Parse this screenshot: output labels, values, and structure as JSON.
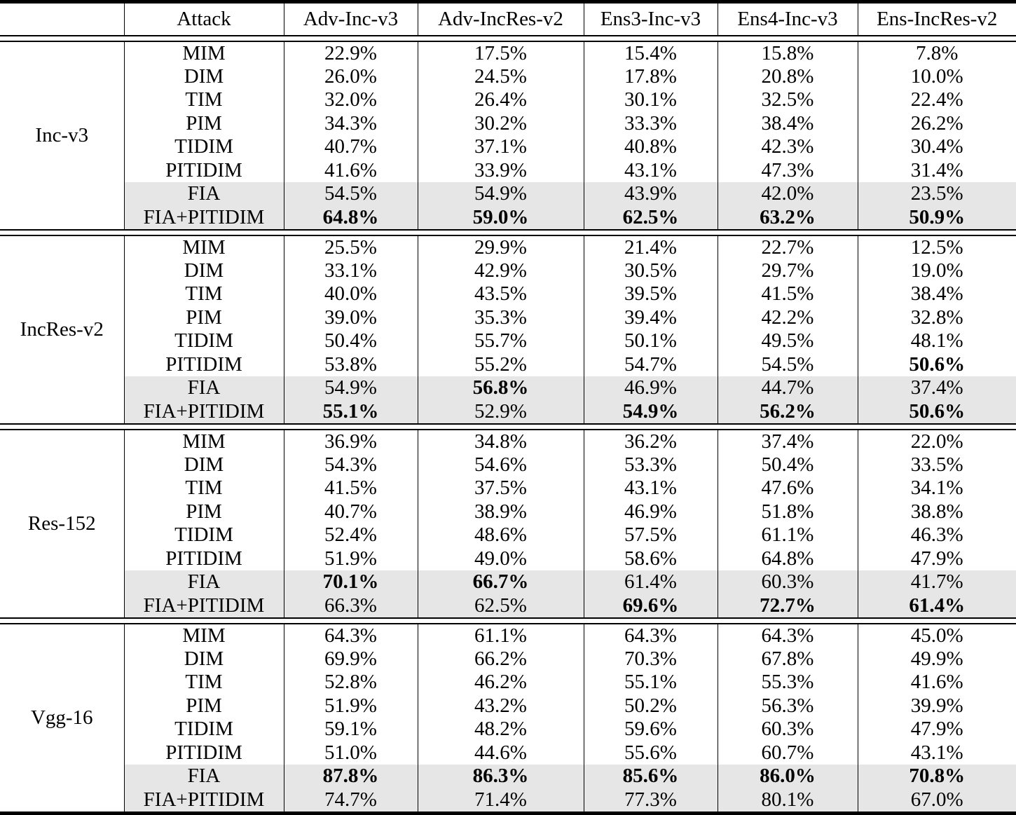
{
  "table": {
    "columns": [
      "",
      "Attack",
      "Adv-Inc-v3",
      "Adv-IncRes-v2",
      "Ens3-Inc-v3",
      "Ens4-Inc-v3",
      "Ens-IncRes-v2"
    ],
    "groups": [
      {
        "model": "Inc-v3",
        "rows": [
          {
            "attack": "MIM",
            "values": [
              "22.9%",
              "17.5%",
              "15.4%",
              "15.8%",
              "7.8%"
            ],
            "bold": [
              0,
              0,
              0,
              0,
              0
            ],
            "shaded": false
          },
          {
            "attack": "DIM",
            "values": [
              "26.0%",
              "24.5%",
              "17.8%",
              "20.8%",
              "10.0%"
            ],
            "bold": [
              0,
              0,
              0,
              0,
              0
            ],
            "shaded": false
          },
          {
            "attack": "TIM",
            "values": [
              "32.0%",
              "26.4%",
              "30.1%",
              "32.5%",
              "22.4%"
            ],
            "bold": [
              0,
              0,
              0,
              0,
              0
            ],
            "shaded": false
          },
          {
            "attack": "PIM",
            "values": [
              "34.3%",
              "30.2%",
              "33.3%",
              "38.4%",
              "26.2%"
            ],
            "bold": [
              0,
              0,
              0,
              0,
              0
            ],
            "shaded": false
          },
          {
            "attack": "TIDIM",
            "values": [
              "40.7%",
              "37.1%",
              "40.8%",
              "42.3%",
              "30.4%"
            ],
            "bold": [
              0,
              0,
              0,
              0,
              0
            ],
            "shaded": false
          },
          {
            "attack": "PITIDIM",
            "values": [
              "41.6%",
              "33.9%",
              "43.1%",
              "47.3%",
              "31.4%"
            ],
            "bold": [
              0,
              0,
              0,
              0,
              0
            ],
            "shaded": false
          },
          {
            "attack": "FIA",
            "values": [
              "54.5%",
              "54.9%",
              "43.9%",
              "42.0%",
              "23.5%"
            ],
            "bold": [
              0,
              0,
              0,
              0,
              0
            ],
            "shaded": true
          },
          {
            "attack": "FIA+PITIDIM",
            "values": [
              "64.8%",
              "59.0%",
              "62.5%",
              "63.2%",
              "50.9%"
            ],
            "bold": [
              1,
              1,
              1,
              1,
              1
            ],
            "shaded": true
          }
        ]
      },
      {
        "model": "IncRes-v2",
        "rows": [
          {
            "attack": "MIM",
            "values": [
              "25.5%",
              "29.9%",
              "21.4%",
              "22.7%",
              "12.5%"
            ],
            "bold": [
              0,
              0,
              0,
              0,
              0
            ],
            "shaded": false
          },
          {
            "attack": "DIM",
            "values": [
              "33.1%",
              "42.9%",
              "30.5%",
              "29.7%",
              "19.0%"
            ],
            "bold": [
              0,
              0,
              0,
              0,
              0
            ],
            "shaded": false
          },
          {
            "attack": "TIM",
            "values": [
              "40.0%",
              "43.5%",
              "39.5%",
              "41.5%",
              "38.4%"
            ],
            "bold": [
              0,
              0,
              0,
              0,
              0
            ],
            "shaded": false
          },
          {
            "attack": "PIM",
            "values": [
              "39.0%",
              "35.3%",
              "39.4%",
              "42.2%",
              "32.8%"
            ],
            "bold": [
              0,
              0,
              0,
              0,
              0
            ],
            "shaded": false
          },
          {
            "attack": "TIDIM",
            "values": [
              "50.4%",
              "55.7%",
              "50.1%",
              "49.5%",
              "48.1%"
            ],
            "bold": [
              0,
              0,
              0,
              0,
              0
            ],
            "shaded": false
          },
          {
            "attack": "PITIDIM",
            "values": [
              "53.8%",
              "55.2%",
              "54.7%",
              "54.5%",
              "50.6%"
            ],
            "bold": [
              0,
              0,
              0,
              0,
              1
            ],
            "shaded": false
          },
          {
            "attack": "FIA",
            "values": [
              "54.9%",
              "56.8%",
              "46.9%",
              "44.7%",
              "37.4%"
            ],
            "bold": [
              0,
              1,
              0,
              0,
              0
            ],
            "shaded": true
          },
          {
            "attack": "FIA+PITIDIM",
            "values": [
              "55.1%",
              "52.9%",
              "54.9%",
              "56.2%",
              "50.6%"
            ],
            "bold": [
              1,
              0,
              1,
              1,
              1
            ],
            "shaded": true
          }
        ]
      },
      {
        "model": "Res-152",
        "rows": [
          {
            "attack": "MIM",
            "values": [
              "36.9%",
              "34.8%",
              "36.2%",
              "37.4%",
              "22.0%"
            ],
            "bold": [
              0,
              0,
              0,
              0,
              0
            ],
            "shaded": false
          },
          {
            "attack": "DIM",
            "values": [
              "54.3%",
              "54.6%",
              "53.3%",
              "50.4%",
              "33.5%"
            ],
            "bold": [
              0,
              0,
              0,
              0,
              0
            ],
            "shaded": false
          },
          {
            "attack": "TIM",
            "values": [
              "41.5%",
              "37.5%",
              "43.1%",
              "47.6%",
              "34.1%"
            ],
            "bold": [
              0,
              0,
              0,
              0,
              0
            ],
            "shaded": false
          },
          {
            "attack": "PIM",
            "values": [
              "40.7%",
              "38.9%",
              "46.9%",
              "51.8%",
              "38.8%"
            ],
            "bold": [
              0,
              0,
              0,
              0,
              0
            ],
            "shaded": false
          },
          {
            "attack": "TIDIM",
            "values": [
              "52.4%",
              "48.6%",
              "57.5%",
              "61.1%",
              "46.3%"
            ],
            "bold": [
              0,
              0,
              0,
              0,
              0
            ],
            "shaded": false
          },
          {
            "attack": "PITIDIM",
            "values": [
              "51.9%",
              "49.0%",
              "58.6%",
              "64.8%",
              "47.9%"
            ],
            "bold": [
              0,
              0,
              0,
              0,
              0
            ],
            "shaded": false
          },
          {
            "attack": "FIA",
            "values": [
              "70.1%",
              "66.7%",
              "61.4%",
              "60.3%",
              "41.7%"
            ],
            "bold": [
              1,
              1,
              0,
              0,
              0
            ],
            "shaded": true
          },
          {
            "attack": "FIA+PITIDIM",
            "values": [
              "66.3%",
              "62.5%",
              "69.6%",
              "72.7%",
              "61.4%"
            ],
            "bold": [
              0,
              0,
              1,
              1,
              1
            ],
            "shaded": true
          }
        ]
      },
      {
        "model": "Vgg-16",
        "rows": [
          {
            "attack": "MIM",
            "values": [
              "64.3%",
              "61.1%",
              "64.3%",
              "64.3%",
              "45.0%"
            ],
            "bold": [
              0,
              0,
              0,
              0,
              0
            ],
            "shaded": false
          },
          {
            "attack": "DIM",
            "values": [
              "69.9%",
              "66.2%",
              "70.3%",
              "67.8%",
              "49.9%"
            ],
            "bold": [
              0,
              0,
              0,
              0,
              0
            ],
            "shaded": false
          },
          {
            "attack": "TIM",
            "values": [
              "52.8%",
              "46.2%",
              "55.1%",
              "55.3%",
              "41.6%"
            ],
            "bold": [
              0,
              0,
              0,
              0,
              0
            ],
            "shaded": false
          },
          {
            "attack": "PIM",
            "values": [
              "51.9%",
              "43.2%",
              "50.2%",
              "56.3%",
              "39.9%"
            ],
            "bold": [
              0,
              0,
              0,
              0,
              0
            ],
            "shaded": false
          },
          {
            "attack": "TIDIM",
            "values": [
              "59.1%",
              "48.2%",
              "59.6%",
              "60.3%",
              "47.9%"
            ],
            "bold": [
              0,
              0,
              0,
              0,
              0
            ],
            "shaded": false
          },
          {
            "attack": "PITIDIM",
            "values": [
              "51.0%",
              "44.6%",
              "55.6%",
              "60.7%",
              "43.1%"
            ],
            "bold": [
              0,
              0,
              0,
              0,
              0
            ],
            "shaded": false
          },
          {
            "attack": "FIA",
            "values": [
              "87.8%",
              "86.3%",
              "85.6%",
              "86.0%",
              "70.8%"
            ],
            "bold": [
              1,
              1,
              1,
              1,
              1
            ],
            "shaded": true
          },
          {
            "attack": "FIA+PITIDIM",
            "values": [
              "74.7%",
              "71.4%",
              "77.3%",
              "80.1%",
              "67.0%"
            ],
            "bold": [
              0,
              0,
              0,
              0,
              0
            ],
            "shaded": true
          }
        ]
      }
    ]
  },
  "style_tokens": {
    "shaded_row_bg": "#e6e6e6",
    "rule_color": "#000000",
    "text_color": "#000000"
  }
}
